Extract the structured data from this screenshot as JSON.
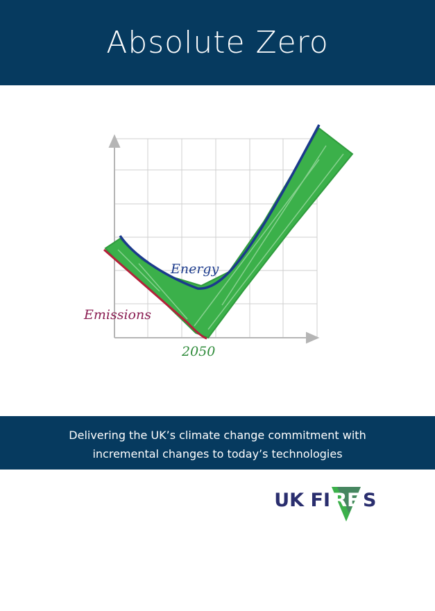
{
  "title": "Absolute Zero",
  "graphic": {
    "curve_labels": {
      "energy": "Energy",
      "emissions": "Emissions"
    },
    "year": "2050"
  },
  "subtitle": {
    "lines": [
      "Delivering the UK’s climate change commitment with",
      "incremental changes to today’s technologies"
    ]
  },
  "logo": {
    "before": "UK FI",
    "highlight": "RE",
    "after": "S"
  }
}
